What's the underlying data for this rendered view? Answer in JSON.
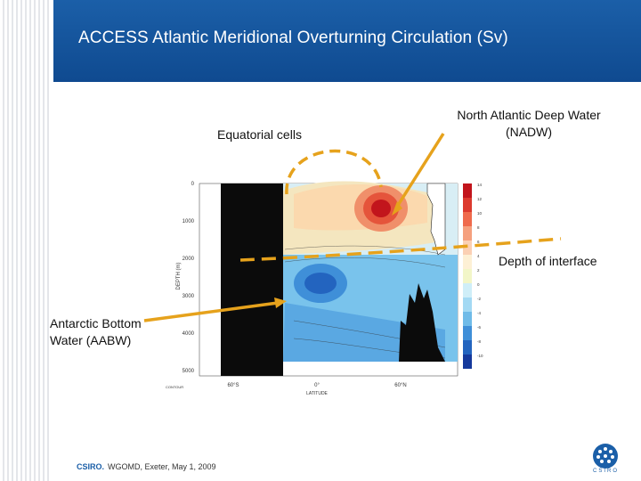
{
  "slide": {
    "title": "ACCESS  Atlantic  Meridional Overturning Circulation (Sv)"
  },
  "annotations": {
    "equatorial_cells": "Equatorial cells",
    "nadw": "North Atlantic Deep Water (NADW)",
    "interface": "Depth of interface",
    "aabw": "Antarctic Bottom Water (AABW)"
  },
  "figure": {
    "ylabel": "DEPTH (m)",
    "xlabel": "LATITUDE",
    "y_ticks": [
      "0",
      "1000",
      "2000",
      "3000",
      "4000",
      "5000"
    ],
    "x_ticks": [
      "60°S",
      "0°",
      "60°N"
    ],
    "colorbar_ticks": [
      "14",
      "12",
      "10",
      "8",
      "6",
      "4",
      "2",
      "0",
      "-2",
      "-4",
      "-6",
      "-8",
      "-10"
    ],
    "colorbar_colors": [
      "#c2151c",
      "#dc3a2e",
      "#ef6a4c",
      "#f5a07e",
      "#fbd0b4",
      "#fdf0d5",
      "#f2f6c8",
      "#cfeef8",
      "#a3d9f3",
      "#6fbbe8",
      "#3f8fd8",
      "#2364bf",
      "#15399c"
    ],
    "contour_note": "CONTOUR"
  },
  "footer": {
    "brand": "CSIRO.",
    "text": "WGOMD, Exeter, May 1, 2009",
    "logo_text": "CSIRO"
  }
}
